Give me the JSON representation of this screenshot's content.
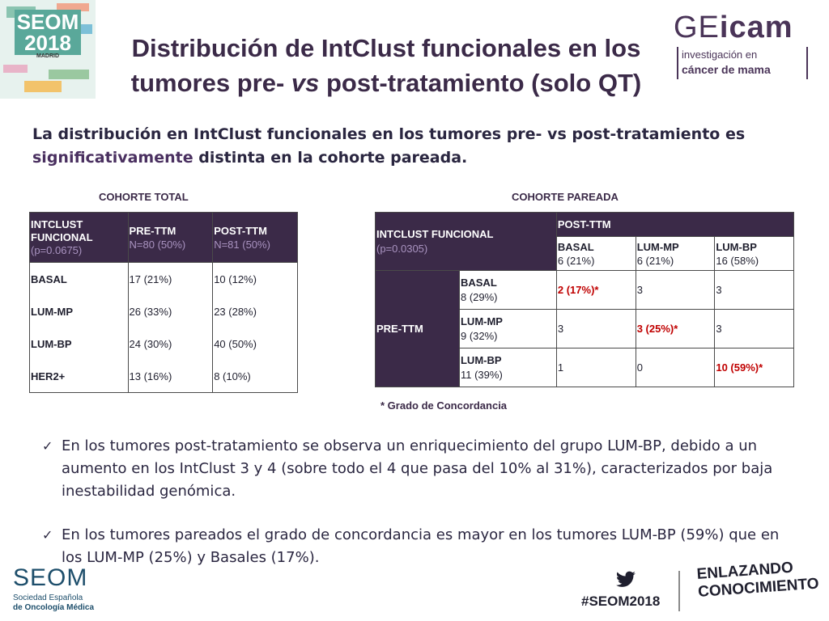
{
  "header": {
    "logo_seom_2018": {
      "line1": "SEOM",
      "line2": "2018",
      "city": "MADRID"
    },
    "title_part1": "Distribución de IntClust funcionales en los",
    "title_part2a": "tumores pre- ",
    "title_part2_vs": "vs",
    "title_part2b": " post-tratamiento (solo QT)",
    "geicam": {
      "brand_a": "GE",
      "brand_b": "icam",
      "line1": "investigación en",
      "line2": "cáncer de mama"
    }
  },
  "subtitle_a": "La distribución en IntClust funcionales en los tumores pre- vs post-tratamiento es",
  "subtitle_b": "significativamente ",
  "subtitle_c": "distinta en la cohorte pareada.",
  "cohort_total": {
    "label": "COHORTE TOTAL",
    "col1": {
      "l1": "INTCLUST",
      "l2": "FUNCIONAL",
      "p": "(p=0.0675)"
    },
    "col2": {
      "l1": "PRE-TTM",
      "l2": "N=80 (50%)"
    },
    "col3": {
      "l1": "POST-TTM",
      "l2": "N=81 (50%)"
    },
    "rows": [
      {
        "name": "BASAL",
        "pre": "17 (21%)",
        "post": "10 (12%)"
      },
      {
        "name": "LUM-MP",
        "pre": "26 (33%)",
        "post": "23 (28%)"
      },
      {
        "name": "LUM-BP",
        "pre": "24 (30%)",
        "post": "40 (50%)"
      },
      {
        "name": "HER2+",
        "pre": "13 (16%)",
        "post": "8 (10%)"
      }
    ]
  },
  "cohort_paired": {
    "label": "COHORTE PAREADA",
    "corner": {
      "l1": "INTCLUST FUNCIONAL",
      "p": "(p=0.0305)"
    },
    "post_header": "POST-TTM",
    "post_cols": [
      {
        "name": "BASAL",
        "n": "6 (21%)"
      },
      {
        "name": "LUM-MP",
        "n": "6 (21%)"
      },
      {
        "name": "LUM-BP",
        "n": "16 (58%)"
      }
    ],
    "pre_label": "PRE-TTM",
    "rows": [
      {
        "name": "BASAL",
        "n": "8 (29%)",
        "c1": "2 (17%)*",
        "c2": "3",
        "c3": "3"
      },
      {
        "name": "LUM-MP",
        "n": "9 (32%)",
        "c1": "3",
        "c2": "3 (25%)*",
        "c3": "3"
      },
      {
        "name": "LUM-BP",
        "n": "11 (39%)",
        "c1": "1",
        "c2": "0",
        "c3": "10 (59%)*"
      }
    ],
    "note": "* Grado de Concordancia"
  },
  "bullets": [
    {
      "l1": "En los tumores post-tratamiento se observa un enriquecimiento del grupo LUM-BP, debido a un",
      "l2": "aumento en los IntClust 3 y 4 (sobre todo el 4 que pasa del 10% al 31%), caracterizados por baja",
      "l3": "inestabilidad genómica."
    },
    {
      "l1": "En los tumores pareados el grado de concordancia es mayor en los tumores LUM-BP (59%) que en",
      "l2": "los LUM-MP (25%) y Basales (17%)."
    }
  ],
  "footer": {
    "seom": "SEOM",
    "seom_sub1": "Sociedad Española",
    "seom_sub2": "de Oncología Médica",
    "hashtag": "#SEOM2018",
    "slogan1": "ENLAZANDO",
    "slogan2": "CONOCIMIENTO"
  },
  "colors": {
    "accent": "#3b2a48",
    "highlight": "#c00000"
  }
}
